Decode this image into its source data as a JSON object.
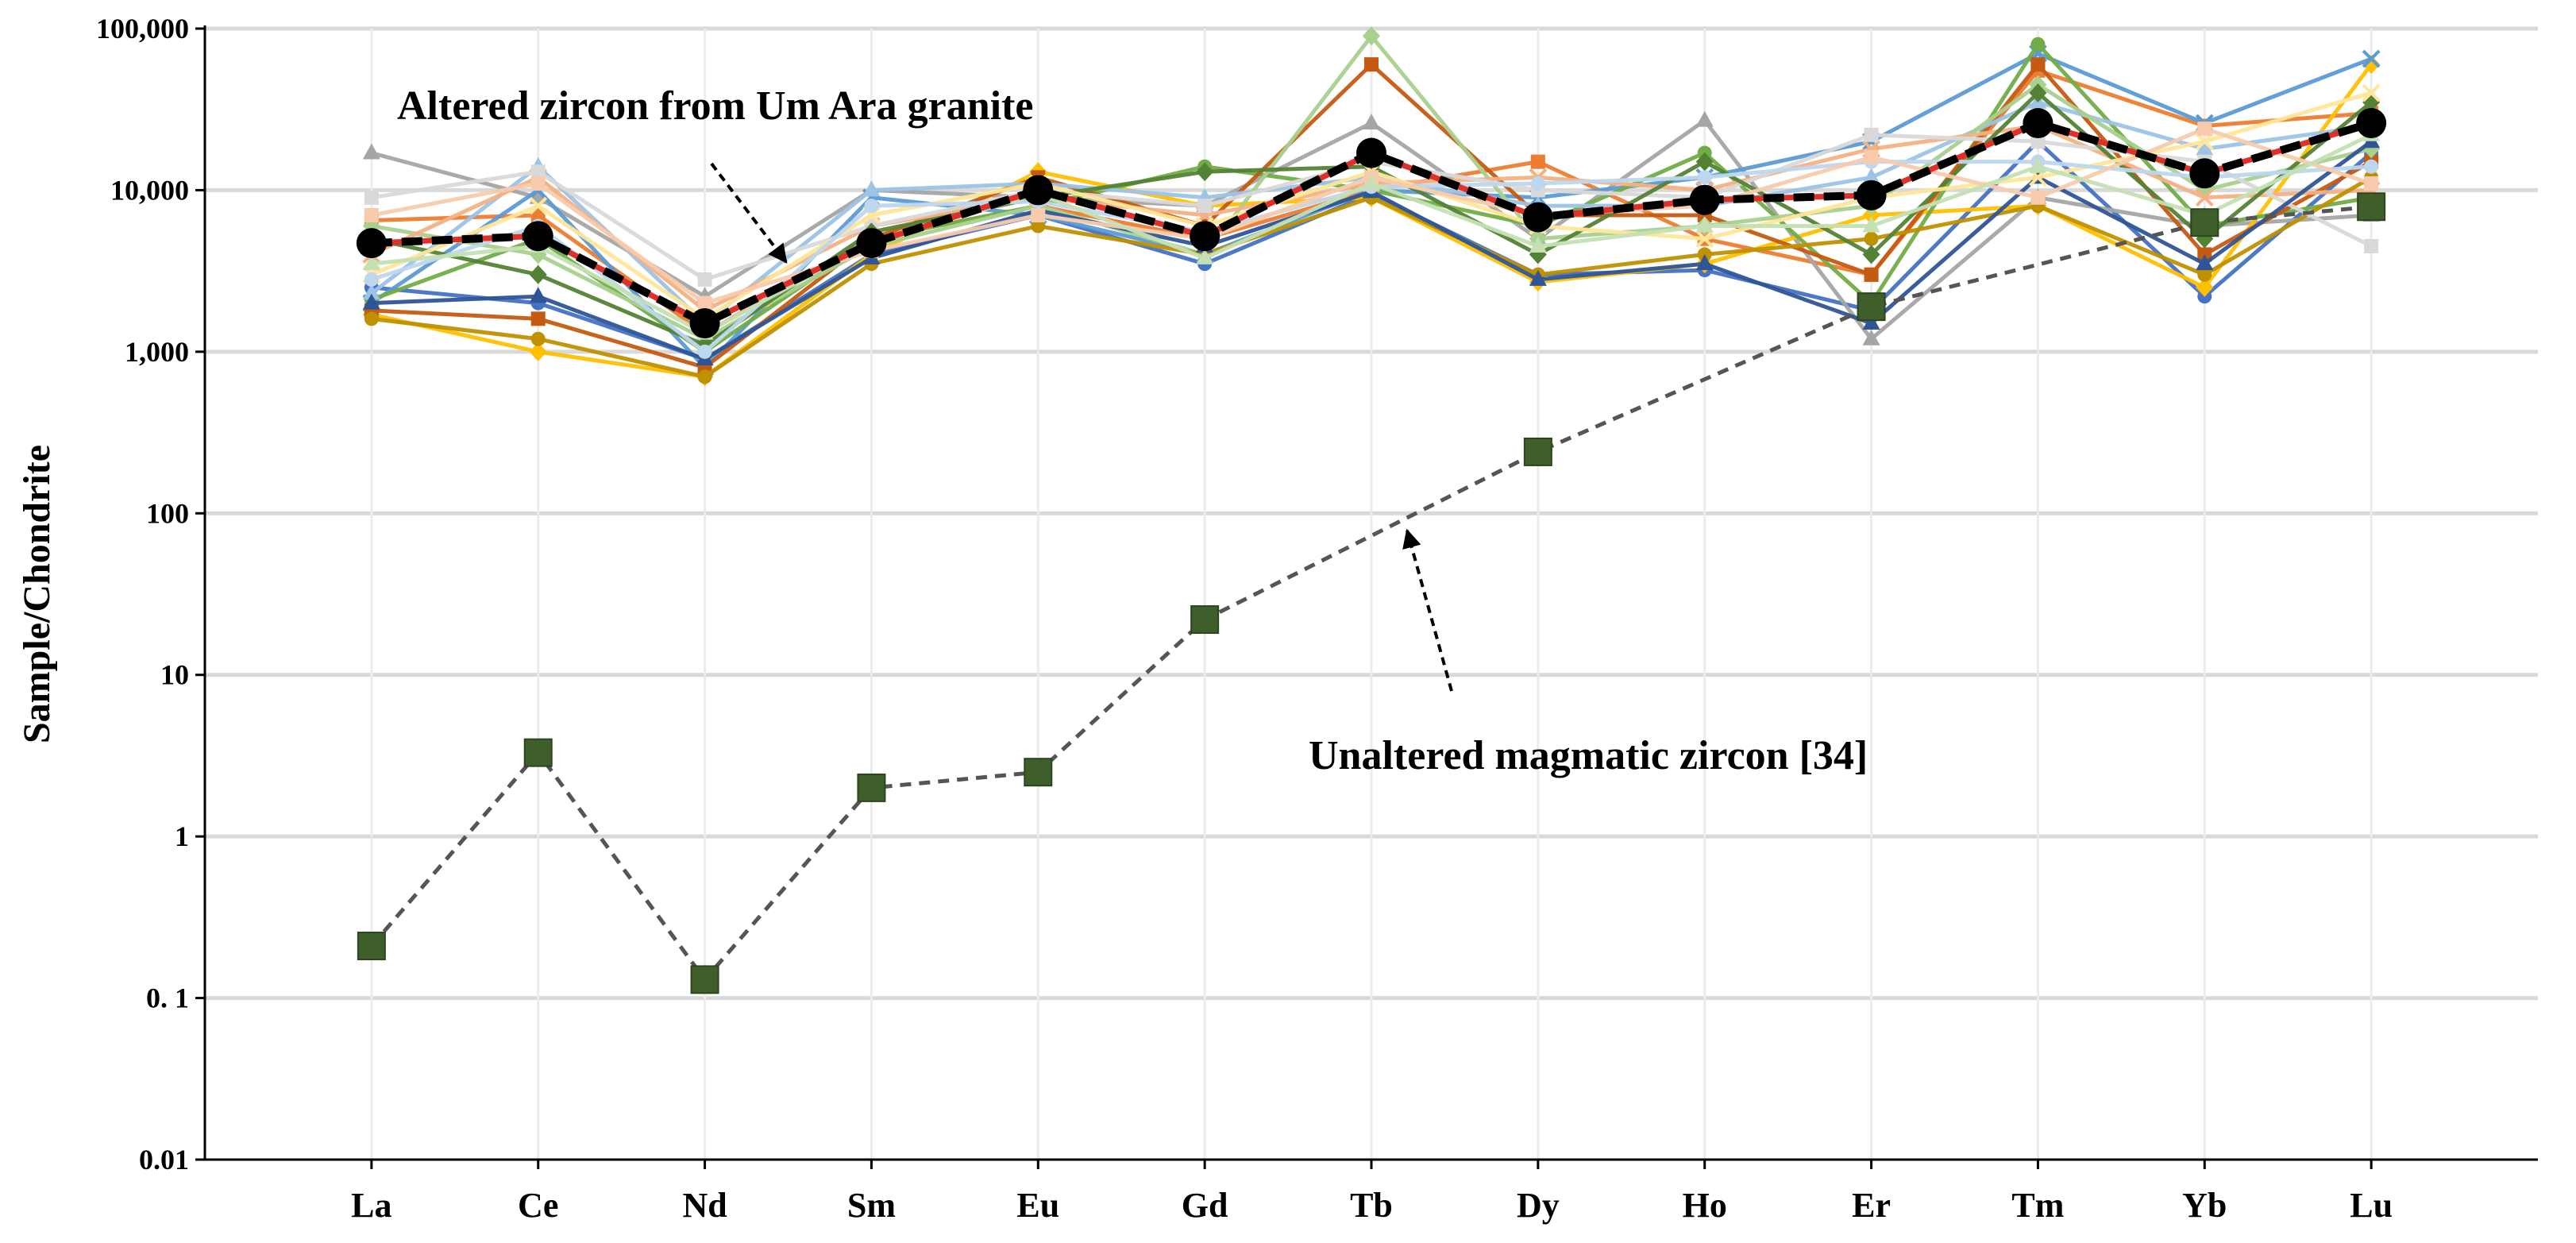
{
  "chart_data": {
    "type": "line",
    "title": "",
    "xlabel": "",
    "ylabel": "Sample/Chondrite",
    "yscale": "log",
    "ylim": [
      0.01,
      100000
    ],
    "grid": "on",
    "categories": [
      "La",
      "Ce",
      "Nd",
      "Sm",
      "Eu",
      "Gd",
      "Tb",
      "Dy",
      "Ho",
      "Er",
      "Tm",
      "Yb",
      "Lu"
    ],
    "yticks": [
      "0.01",
      "0. 1",
      "1",
      "10",
      "100",
      "1,000",
      "10,000",
      "100,000"
    ],
    "yticks_values": [
      0.01,
      0.1,
      1,
      10,
      100,
      1000,
      10000,
      100000
    ],
    "annotations": {
      "altered": "Altered zircon from Um Ara granite",
      "unaltered": "Unaltered magmatic zircon [34]"
    },
    "colors": {
      "altered_mean": "#000000",
      "unaltered_line": "#555555",
      "unaltered_marker": "#3f5f2a",
      "grid": "#d9d9d9"
    },
    "series_altered_individual": [
      {
        "color": "#4472c4",
        "values": [
          2500,
          2000,
          900,
          4000,
          7000,
          3500,
          9500,
          3000,
          3200,
          1800,
          20000,
          2200,
          17000
        ]
      },
      {
        "color": "#ed7d31",
        "values": [
          6500,
          7000,
          1300,
          5000,
          8000,
          5000,
          10000,
          15000,
          5000,
          3000,
          55000,
          25000,
          30000
        ]
      },
      {
        "color": "#a5a5a5",
        "values": [
          17000,
          9000,
          2200,
          10000,
          9000,
          8000,
          26000,
          5000,
          27000,
          1200,
          9000,
          6000,
          7000
        ]
      },
      {
        "color": "#ffc000",
        "values": [
          1700,
          1000,
          700,
          4000,
          13000,
          8000,
          9000,
          2700,
          3500,
          7000,
          8000,
          2500,
          60000
        ]
      },
      {
        "color": "#5b9bd5",
        "values": [
          2000,
          10000,
          800,
          9000,
          7000,
          4000,
          10000,
          9000,
          12000,
          20000,
          70000,
          26000,
          65000
        ]
      },
      {
        "color": "#70ad47",
        "values": [
          2100,
          5000,
          1000,
          5000,
          8000,
          14000,
          10000,
          6000,
          17000,
          2000,
          80000,
          6000,
          9000
        ]
      },
      {
        "color": "#c55a11",
        "values": [
          1800,
          1600,
          800,
          5000,
          12000,
          6000,
          60000,
          7000,
          7000,
          3000,
          60000,
          4000,
          15000
        ]
      },
      {
        "color": "#9dc3e6",
        "values": [
          2300,
          14000,
          1500,
          10000,
          11000,
          9000,
          12000,
          8000,
          8000,
          12000,
          35000,
          18000,
          25000
        ]
      },
      {
        "color": "#a9d18e",
        "values": [
          6000,
          4000,
          1200,
          4500,
          8000,
          4000,
          90000,
          5000,
          6000,
          8000,
          45000,
          10000,
          18000
        ]
      },
      {
        "color": "#f4b183",
        "values": [
          4000,
          12000,
          1800,
          6000,
          9000,
          7000,
          11000,
          12000,
          10000,
          18000,
          25000,
          9000,
          10000
        ]
      },
      {
        "color": "#bf9000",
        "values": [
          1600,
          1200,
          700,
          3500,
          6000,
          4000,
          9000,
          3000,
          4000,
          5000,
          8000,
          3000,
          12000
        ]
      },
      {
        "color": "#d9d9d9",
        "values": [
          9000,
          13000,
          2800,
          6000,
          10000,
          8000,
          15000,
          10000,
          9000,
          22000,
          20000,
          15000,
          4500
        ]
      },
      {
        "color": "#2f5597",
        "values": [
          2000,
          2200,
          900,
          3800,
          7500,
          4500,
          9800,
          2800,
          3500,
          1500,
          12000,
          3500,
          20000
        ]
      },
      {
        "color": "#548235",
        "values": [
          5000,
          3000,
          1100,
          5500,
          9000,
          13000,
          14000,
          4000,
          15000,
          4000,
          40000,
          5000,
          35000
        ]
      },
      {
        "color": "#ffe699",
        "values": [
          3000,
          8000,
          1600,
          7000,
          11000,
          6000,
          13000,
          6000,
          5000,
          9000,
          12000,
          20000,
          40000
        ]
      },
      {
        "color": "#bdd7ee",
        "values": [
          2800,
          6000,
          1000,
          8000,
          8500,
          5500,
          10500,
          11000,
          12000,
          15000,
          15000,
          12000,
          14000
        ]
      },
      {
        "color": "#f8cbad",
        "values": [
          7000,
          11000,
          2000,
          4200,
          7000,
          5000,
          12000,
          7000,
          8000,
          16000,
          9000,
          24000,
          11000
        ]
      },
      {
        "color": "#c5e0b4",
        "values": [
          3500,
          4500,
          1300,
          4800,
          9500,
          3800,
          11000,
          4500,
          6000,
          6000,
          14000,
          7000,
          22000
        ]
      }
    ],
    "series_altered_mean": {
      "values": [
        4700,
        5200,
        1500,
        4700,
        10000,
        5200,
        17000,
        6800,
        8700,
        9300,
        26000,
        12700,
        26000
      ]
    },
    "series_unaltered": {
      "values": [
        0.21,
        3.3,
        0.13,
        2.0,
        2.5,
        22,
        null,
        240,
        null,
        1900,
        null,
        6300,
        7900
      ],
      "smooth_connections": [
        [
          0.0,
          0.0
        ],
        [
          0.5,
          1.6
        ],
        [
          1.0,
          0.2
        ],
        [
          1.5,
          0.88
        ],
        [
          2.0,
          1.9
        ],
        [
          2.2,
          3.4
        ],
        [
          4.0,
          5.0
        ]
      ]
    }
  }
}
